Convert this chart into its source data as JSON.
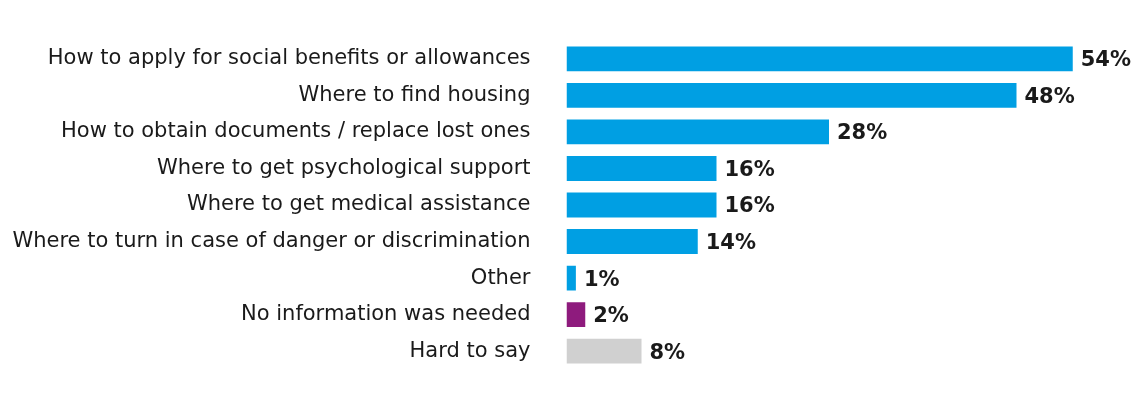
{
  "chart_data": {
    "type": "bar",
    "orientation": "horizontal",
    "categories": [
      "How to apply for social benefits or allowances",
      "Where to find housing",
      "How to obtain documents / replace lost ones",
      "Where to get psychological support",
      "Where to get medical assistance",
      "Where to turn in case of danger or discrimination",
      "Other",
      "No information was needed",
      "Hard to say"
    ],
    "values": [
      54,
      48,
      28,
      16,
      16,
      14,
      1,
      2,
      8
    ],
    "colors": [
      "#009fe3",
      "#009fe3",
      "#009fe3",
      "#009fe3",
      "#009fe3",
      "#009fe3",
      "#009fe3",
      "#8e1b7d",
      "#d0d0d0"
    ],
    "data_labels": true,
    "value_labels": [
      "54%",
      "48%",
      "28%",
      "16%",
      "16%",
      "14%",
      "1%",
      "2%",
      "8%"
    ],
    "grid": false,
    "legend": false
  }
}
